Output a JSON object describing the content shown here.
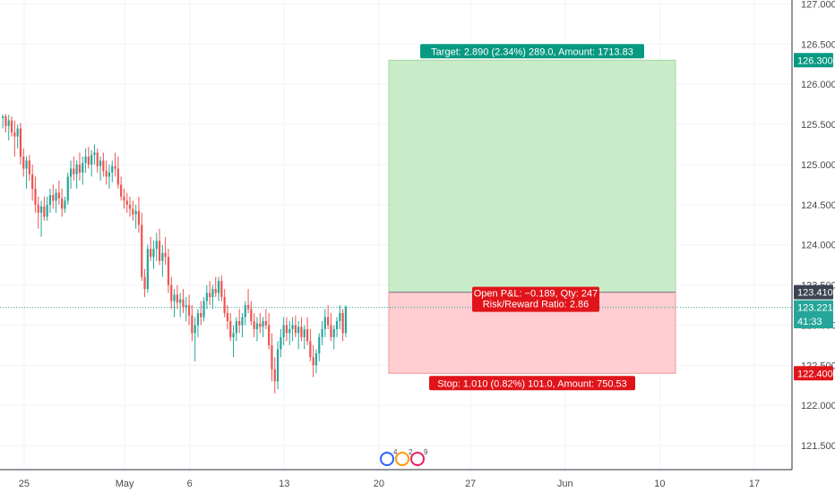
{
  "chart_data": {
    "type": "candlestick",
    "y_axis": {
      "range": [
        121.2,
        127.05
      ],
      "ticks": [
        "127.000",
        "126.500",
        "126.000",
        "125.500",
        "125.000",
        "124.500",
        "124.000",
        "123.500",
        "123.000",
        "122.500",
        "122.000",
        "121.500"
      ],
      "tick_values": [
        127.0,
        126.5,
        126.0,
        125.5,
        125.0,
        124.5,
        124.0,
        123.5,
        123.0,
        122.5,
        122.0,
        121.5
      ]
    },
    "x_axis": {
      "labels": [
        "25",
        "May",
        "6",
        "13",
        "20",
        "27",
        "Jun",
        "10",
        "17"
      ],
      "label_bars": [
        -2,
        32,
        54,
        86,
        118,
        149,
        181,
        213,
        245
      ]
    },
    "price_tags": [
      {
        "text": "126.300",
        "value": 126.3,
        "color": "#089981"
      },
      {
        "text": "123.410",
        "value": 123.41,
        "color": "#3d4351"
      },
      {
        "text": "123.221",
        "value": 123.221,
        "color": "#26a69a"
      },
      {
        "text": "41:33",
        "value": 123.05,
        "color": "#26a69a"
      },
      {
        "text": "122.400",
        "value": 122.4,
        "color": "#e0141a"
      }
    ],
    "current_price": 123.221,
    "position": {
      "entry": 123.41,
      "target": 126.3,
      "stop": 122.4,
      "target_label": "Target: 2.890 (2.34%) 289.0, Amount: 1713.83",
      "pnl_label": "Open P&L: −0.189, Qty: 247",
      "ratio_label": "Risk/Reward Ratio: 2.86",
      "stop_label": "Stop: 1.010 (0.82%) 101.0, Amount: 750.53",
      "start_bar": 130,
      "end_bar": 226
    },
    "events_badge": [
      "4",
      "2",
      "9"
    ],
    "colors": {
      "up": "#26a69a",
      "down": "#ef5350",
      "target_fill": "#c8ebc8",
      "stop_fill": "#ffcdd2",
      "grid": "#f0f3fa"
    },
    "ohlc": [
      [
        125.58,
        125.62,
        125.45,
        125.6
      ],
      [
        125.6,
        125.63,
        125.4,
        125.48
      ],
      [
        125.48,
        125.62,
        125.3,
        125.55
      ],
      [
        125.55,
        125.6,
        125.35,
        125.4
      ],
      [
        125.4,
        125.55,
        125.1,
        125.35
      ],
      [
        125.35,
        125.5,
        125.2,
        125.45
      ],
      [
        125.45,
        125.52,
        125.0,
        125.1
      ],
      [
        125.1,
        125.2,
        124.85,
        124.95
      ],
      [
        124.95,
        125.1,
        124.7,
        125.05
      ],
      [
        125.05,
        125.12,
        124.8,
        124.88
      ],
      [
        124.88,
        125.0,
        124.55,
        124.7
      ],
      [
        124.7,
        124.85,
        124.4,
        124.5
      ],
      [
        124.5,
        124.6,
        124.2,
        124.4
      ],
      [
        124.4,
        124.55,
        124.1,
        124.48
      ],
      [
        124.48,
        124.6,
        124.3,
        124.35
      ],
      [
        124.35,
        124.6,
        124.3,
        124.5
      ],
      [
        124.5,
        124.7,
        124.4,
        124.62
      ],
      [
        124.62,
        124.75,
        124.45,
        124.55
      ],
      [
        124.55,
        124.7,
        124.4,
        124.65
      ],
      [
        124.65,
        124.8,
        124.5,
        124.58
      ],
      [
        124.58,
        124.7,
        124.35,
        124.45
      ],
      [
        124.45,
        124.6,
        124.4,
        124.55
      ],
      [
        124.55,
        124.9,
        124.5,
        124.85
      ],
      [
        124.85,
        125.05,
        124.7,
        124.95
      ],
      [
        124.95,
        125.1,
        124.8,
        124.88
      ],
      [
        124.88,
        125.05,
        124.7,
        125.0
      ],
      [
        125.0,
        125.15,
        124.8,
        124.9
      ],
      [
        124.9,
        125.1,
        124.75,
        125.02
      ],
      [
        125.02,
        125.2,
        124.9,
        125.1
      ],
      [
        125.1,
        125.22,
        124.95,
        125.0
      ],
      [
        125.0,
        125.18,
        124.85,
        125.12
      ],
      [
        125.12,
        125.25,
        125.0,
        125.15
      ],
      [
        125.15,
        125.2,
        124.9,
        124.98
      ],
      [
        124.98,
        125.1,
        124.8,
        125.05
      ],
      [
        125.05,
        125.15,
        124.85,
        124.92
      ],
      [
        124.92,
        125.05,
        124.75,
        124.85
      ],
      [
        124.85,
        125.0,
        124.7,
        124.9
      ],
      [
        124.9,
        125.05,
        124.78,
        124.98
      ],
      [
        124.98,
        125.15,
        124.85,
        124.95
      ],
      [
        124.95,
        125.1,
        124.7,
        124.75
      ],
      [
        124.75,
        124.85,
        124.55,
        124.6
      ],
      [
        124.6,
        124.7,
        124.45,
        124.55
      ],
      [
        124.55,
        124.65,
        124.4,
        124.5
      ],
      [
        124.5,
        124.6,
        124.35,
        124.45
      ],
      [
        124.45,
        124.55,
        124.3,
        124.38
      ],
      [
        124.38,
        124.5,
        124.2,
        124.42
      ],
      [
        124.42,
        124.6,
        124.15,
        124.25
      ],
      [
        124.25,
        124.4,
        123.55,
        123.6
      ],
      [
        123.6,
        123.7,
        123.35,
        123.45
      ],
      [
        123.45,
        124.0,
        123.4,
        123.95
      ],
      [
        123.95,
        124.1,
        123.8,
        123.85
      ],
      [
        123.85,
        124.05,
        123.7,
        123.95
      ],
      [
        123.95,
        124.15,
        123.8,
        124.05
      ],
      [
        124.05,
        124.2,
        123.75,
        123.8
      ],
      [
        123.8,
        124.0,
        123.6,
        123.9
      ],
      [
        123.9,
        124.1,
        123.75,
        123.85
      ],
      [
        123.85,
        123.95,
        123.4,
        123.5
      ],
      [
        123.5,
        123.6,
        123.2,
        123.3
      ],
      [
        123.3,
        123.45,
        123.1,
        123.38
      ],
      [
        123.38,
        123.5,
        123.2,
        123.28
      ],
      [
        123.28,
        123.4,
        123.1,
        123.32
      ],
      [
        123.32,
        123.45,
        123.15,
        123.22
      ],
      [
        123.22,
        123.35,
        123.05,
        123.25
      ],
      [
        123.25,
        123.38,
        123.0,
        123.12
      ],
      [
        123.12,
        123.25,
        122.8,
        122.9
      ],
      [
        122.9,
        123.1,
        122.55,
        123.0
      ],
      [
        123.0,
        123.2,
        122.85,
        123.15
      ],
      [
        123.15,
        123.3,
        123.0,
        123.1
      ],
      [
        123.1,
        123.35,
        123.05,
        123.3
      ],
      [
        123.3,
        123.5,
        123.2,
        123.4
      ],
      [
        123.4,
        123.55,
        123.25,
        123.35
      ],
      [
        123.35,
        123.5,
        123.2,
        123.45
      ],
      [
        123.45,
        123.6,
        123.35,
        123.4
      ],
      [
        123.4,
        123.6,
        123.3,
        123.55
      ],
      [
        123.55,
        123.62,
        123.3,
        123.35
      ],
      [
        123.35,
        123.45,
        123.1,
        123.15
      ],
      [
        123.15,
        123.25,
        122.95,
        123.05
      ],
      [
        123.05,
        123.15,
        122.8,
        122.85
      ],
      [
        122.85,
        123.0,
        122.6,
        122.9
      ],
      [
        122.9,
        123.1,
        122.8,
        123.05
      ],
      [
        123.05,
        123.2,
        122.9,
        123.0
      ],
      [
        123.0,
        123.15,
        122.85,
        123.1
      ],
      [
        123.1,
        123.3,
        123.0,
        123.25
      ],
      [
        123.25,
        123.45,
        123.15,
        123.2
      ],
      [
        123.2,
        123.3,
        123.0,
        123.05
      ],
      [
        123.05,
        123.15,
        122.85,
        122.95
      ],
      [
        122.95,
        123.1,
        122.8,
        123.02
      ],
      [
        123.02,
        123.15,
        122.9,
        122.98
      ],
      [
        122.98,
        123.1,
        122.85,
        123.05
      ],
      [
        123.05,
        123.2,
        122.95,
        123.0
      ],
      [
        123.0,
        123.15,
        122.7,
        122.75
      ],
      [
        122.75,
        122.9,
        122.3,
        122.45
      ],
      [
        122.45,
        122.6,
        122.15,
        122.3
      ],
      [
        122.3,
        122.8,
        122.2,
        122.7
      ],
      [
        122.7,
        122.95,
        122.6,
        122.85
      ],
      [
        122.85,
        123.1,
        122.75,
        123.0
      ],
      [
        123.0,
        123.1,
        122.8,
        122.9
      ],
      [
        122.9,
        123.05,
        122.75,
        122.95
      ],
      [
        122.95,
        123.1,
        122.8,
        123.0
      ],
      [
        123.0,
        123.12,
        122.85,
        122.9
      ],
      [
        122.9,
        123.05,
        122.7,
        122.98
      ],
      [
        122.98,
        123.1,
        122.8,
        122.85
      ],
      [
        122.85,
        123.0,
        122.7,
        122.95
      ],
      [
        122.95,
        123.1,
        122.75,
        122.8
      ],
      [
        122.8,
        122.95,
        122.55,
        122.6
      ],
      [
        122.6,
        122.75,
        122.35,
        122.5
      ],
      [
        122.5,
        122.7,
        122.4,
        122.65
      ],
      [
        122.65,
        122.9,
        122.55,
        122.85
      ],
      [
        122.85,
        123.05,
        122.75,
        122.95
      ],
      [
        122.95,
        123.2,
        122.85,
        123.1
      ],
      [
        123.1,
        123.25,
        122.95,
        123.0
      ],
      [
        123.0,
        123.15,
        122.8,
        122.85
      ],
      [
        122.85,
        123.0,
        122.7,
        122.95
      ],
      [
        122.95,
        123.1,
        122.85,
        123.05
      ],
      [
        123.05,
        123.25,
        122.95,
        123.15
      ],
      [
        123.15,
        123.2,
        122.8,
        122.9
      ],
      [
        122.9,
        123.25,
        122.85,
        123.22
      ]
    ]
  }
}
